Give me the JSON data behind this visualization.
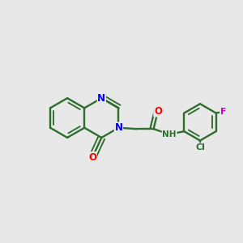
{
  "bg_color": "#e8e8e8",
  "bond_color": "#2d6e2d",
  "bond_width": 1.7,
  "atom_colors": {
    "N": "#0000ff",
    "O_ring": "#ff0000",
    "O_amide": "#ff0000",
    "Cl": "#2d6e2d",
    "F": "#cc00cc",
    "NH": "#2d6e2d"
  },
  "doff": 0.14,
  "r": 0.82
}
